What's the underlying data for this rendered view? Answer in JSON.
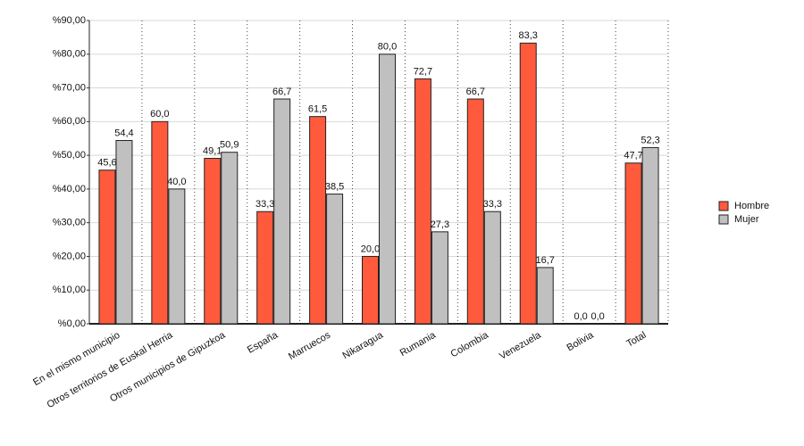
{
  "chart_data": {
    "type": "bar",
    "categories": [
      "En el mismo municipio",
      "Otros territorios de Euskal Herria",
      "Otros municipios de Gipuzkoa",
      "España",
      "Marruecos",
      "Nikaragua",
      "Rumania",
      "Colombia",
      "Venezuela",
      "Bolivia",
      "Total"
    ],
    "series": [
      {
        "name": "Hombre",
        "color": "#ff5a3c",
        "values": [
          45.6,
          60.0,
          49.1,
          33.3,
          61.5,
          20.0,
          72.7,
          66.7,
          83.3,
          0.0,
          47.7
        ],
        "value_labels": [
          "45,6",
          "60,0",
          "49,1",
          "33,3",
          "61,5",
          "20,0",
          "72,7",
          "66,7",
          "83,3",
          "0,0",
          "47,7"
        ]
      },
      {
        "name": "Mujer",
        "color": "#c0c0c0",
        "values": [
          54.4,
          40.0,
          50.9,
          66.7,
          38.5,
          80.0,
          27.3,
          33.3,
          16.7,
          0.0,
          52.3
        ],
        "value_labels": [
          "54,4",
          "40,0",
          "50,9",
          "66,7",
          "38,5",
          "80,0",
          "27,3",
          "33,3",
          "16,7",
          "0,0",
          "52,3"
        ]
      }
    ],
    "ylim": [
      0,
      90
    ],
    "yticks": [
      {
        "value": 0,
        "label": "%0,00"
      },
      {
        "value": 10,
        "label": "%10,00"
      },
      {
        "value": 20,
        "label": "%20,00"
      },
      {
        "value": 30,
        "label": "%30,00"
      },
      {
        "value": 40,
        "label": "%40,00"
      },
      {
        "value": 50,
        "label": "%50,00"
      },
      {
        "value": 60,
        "label": "%60,00"
      },
      {
        "value": 70,
        "label": "%70,00"
      },
      {
        "value": 80,
        "label": "%80,00"
      },
      {
        "value": 90,
        "label": "%90,00"
      }
    ],
    "grid": true,
    "legend": "right"
  }
}
